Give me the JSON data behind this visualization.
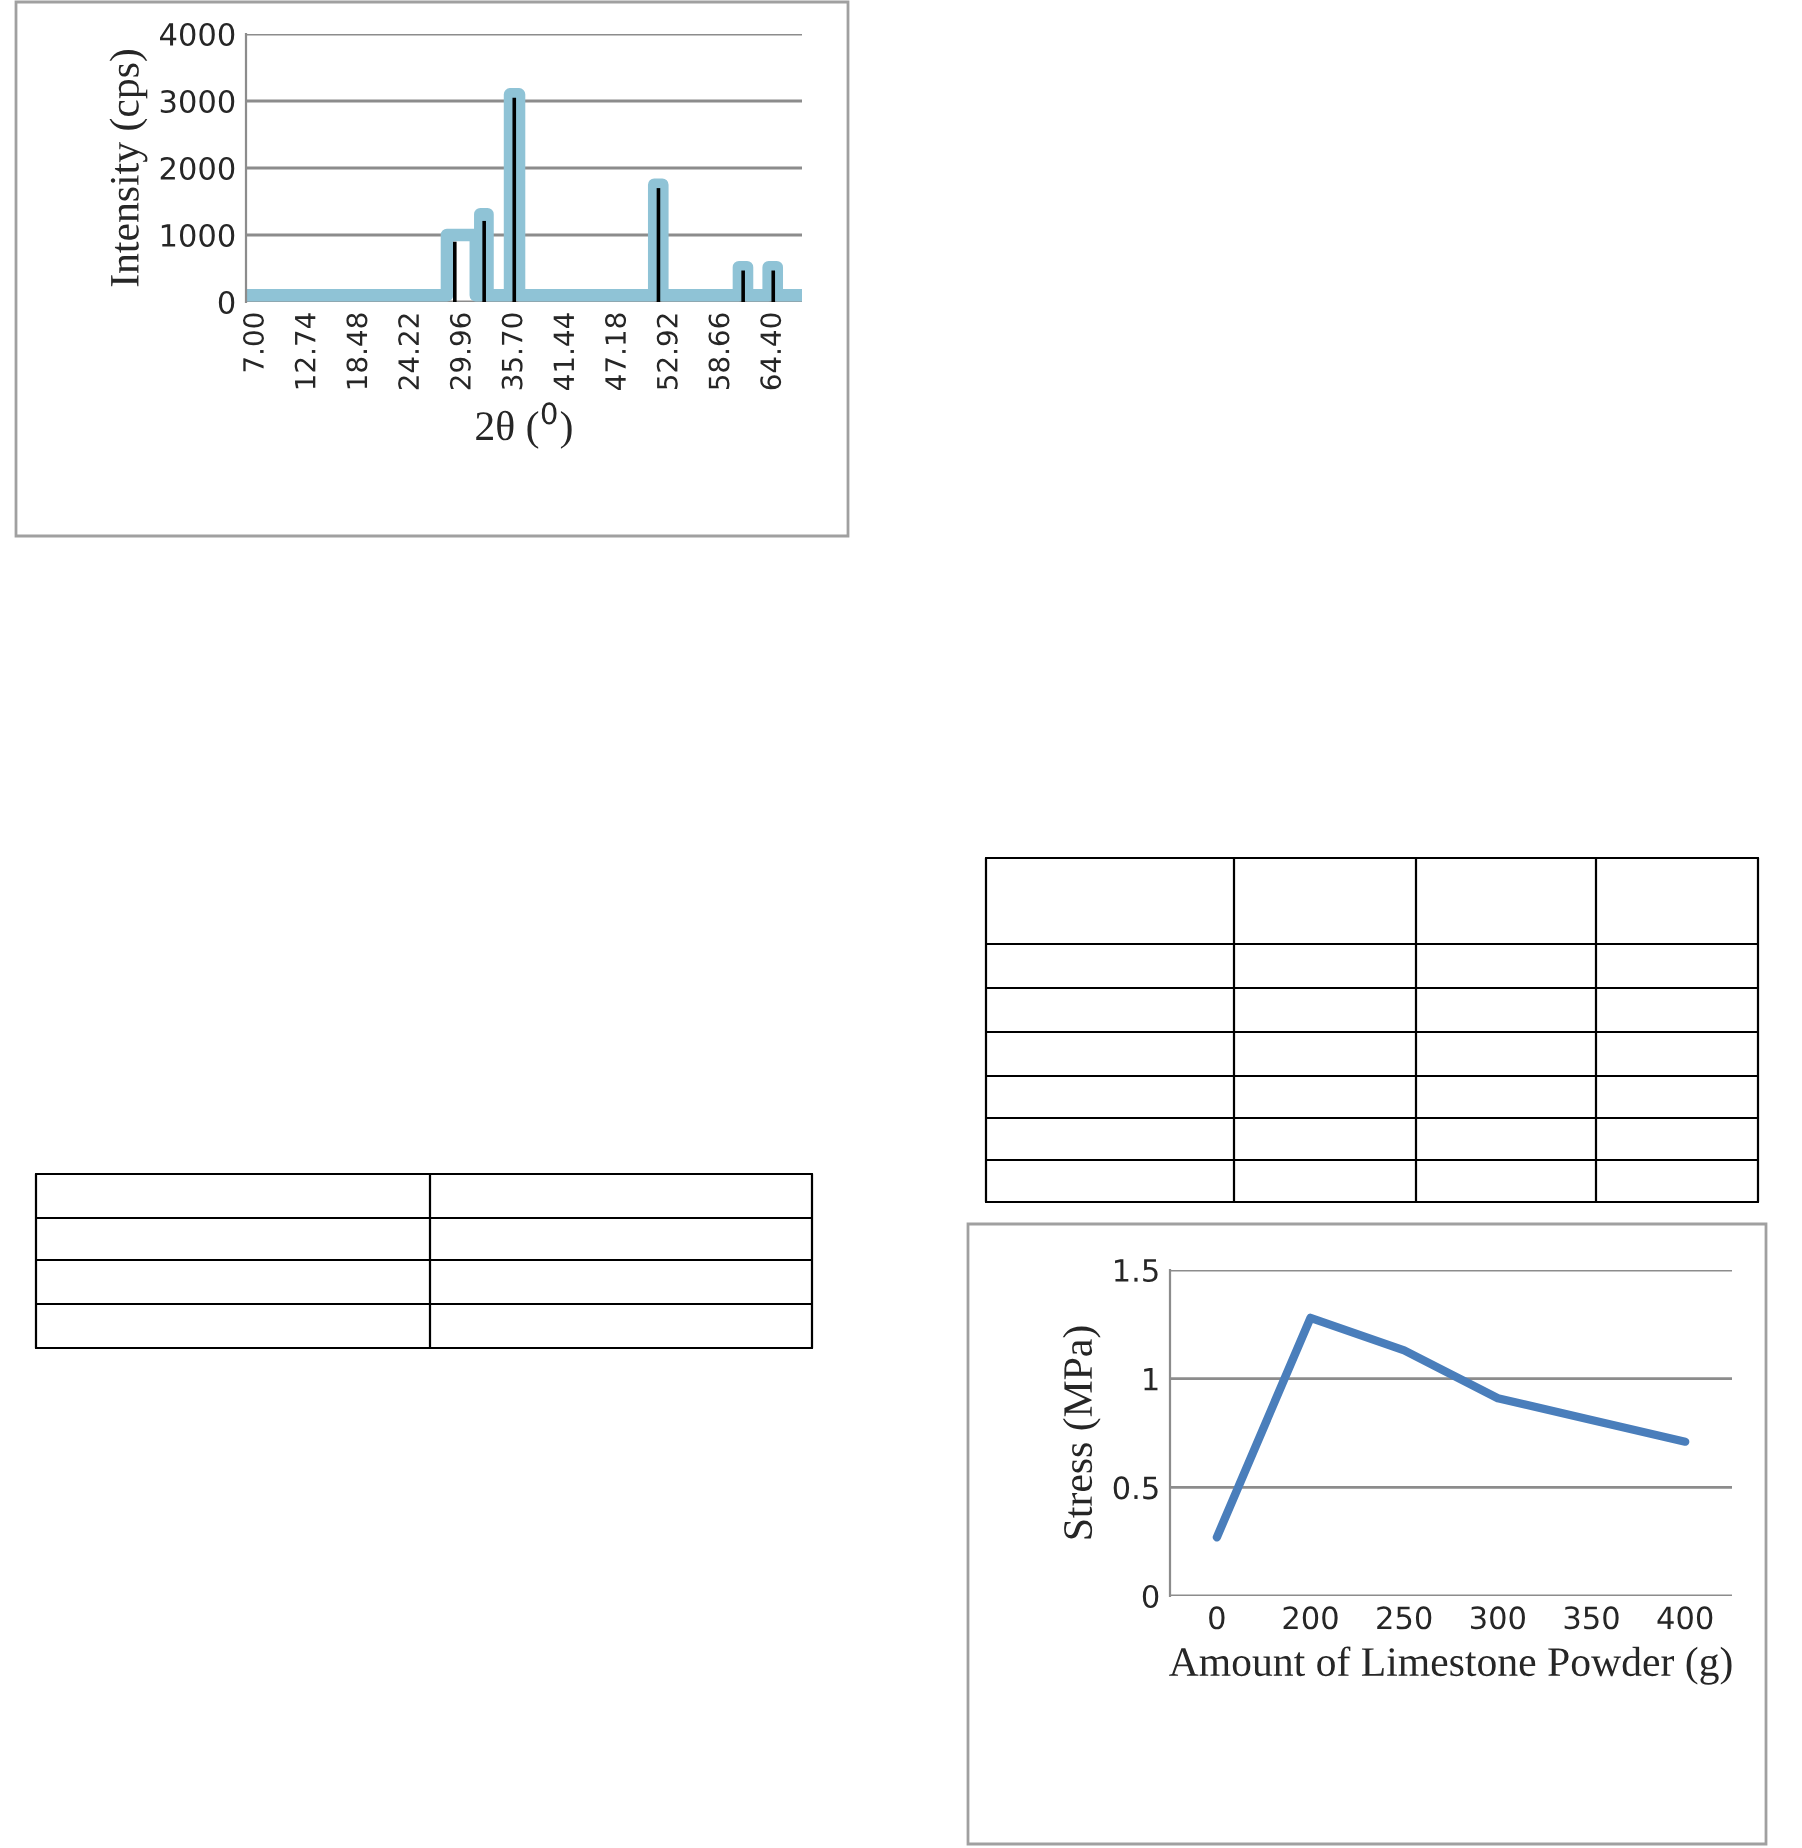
{
  "chart_data": [
    {
      "type": "line",
      "xlabel": "2θ ($^{0}$)",
      "ylabel": "Intensity (cps)",
      "xlim": [
        5.9,
        67.6
      ],
      "ylim": [
        0,
        4000
      ],
      "xticks": [
        {
          "value": 7,
          "label": "7.00"
        },
        {
          "value": 12.74,
          "label": "12.74"
        },
        {
          "value": 18.48,
          "label": "18.48"
        },
        {
          "value": 24.22,
          "label": "24.22"
        },
        {
          "value": 29.96,
          "label": "29.96"
        },
        {
          "value": 35.7,
          "label": "35.70"
        },
        {
          "value": 41.44,
          "label": "41.44"
        },
        {
          "value": 47.18,
          "label": "47.18"
        },
        {
          "value": 52.92,
          "label": "52.92"
        },
        {
          "value": 58.66,
          "label": "58.66"
        },
        {
          "value": 64.4,
          "label": "64.40"
        }
      ],
      "yticks": [
        0,
        1000,
        2000,
        3000,
        4000
      ],
      "grid": "y",
      "legend": false,
      "series": [
        {
          "type": "line",
          "color": "#8fc3d6",
          "x": [
            5.9,
            28.2,
            28.2,
            31.4,
            31.4,
            31.9,
            31.9,
            32.7,
            32.7,
            35.2,
            35.2,
            36.2,
            36.2,
            51.2,
            51.2,
            52.1,
            52.1,
            60.6,
            60.6,
            61.5,
            61.5,
            63.9,
            63.9,
            64.8,
            64.8,
            67.6
          ],
          "values": [
            100,
            100,
            1000,
            1000,
            100,
            100,
            1310,
            1310,
            100,
            100,
            3100,
            3100,
            100,
            100,
            1750,
            1750,
            100,
            100,
            520,
            520,
            100,
            100,
            520,
            520,
            100,
            100
          ]
        },
        {
          "type": "bar",
          "color": "#000000",
          "x": [
            29.07,
            32.33,
            35.67,
            51.67,
            61.07,
            64.41
          ],
          "values": [
            900,
            1210,
            3050,
            1700,
            470,
            470
          ]
        }
      ]
    },
    {
      "type": "line",
      "xlabel": "Amount of Limestone Powder (g)",
      "ylabel": "Stress (MPa)",
      "categories": [
        "0",
        "200",
        "250",
        "300",
        "350",
        "400"
      ],
      "ylim": [
        0,
        1.5
      ],
      "yticks": [
        0,
        0.5,
        1,
        1.5
      ],
      "grid": "y",
      "legend": false,
      "series": [
        {
          "color": "#4a7ebb",
          "values": [
            0.27,
            1.28,
            1.13,
            0.91,
            0.81,
            0.71
          ]
        }
      ]
    }
  ]
}
